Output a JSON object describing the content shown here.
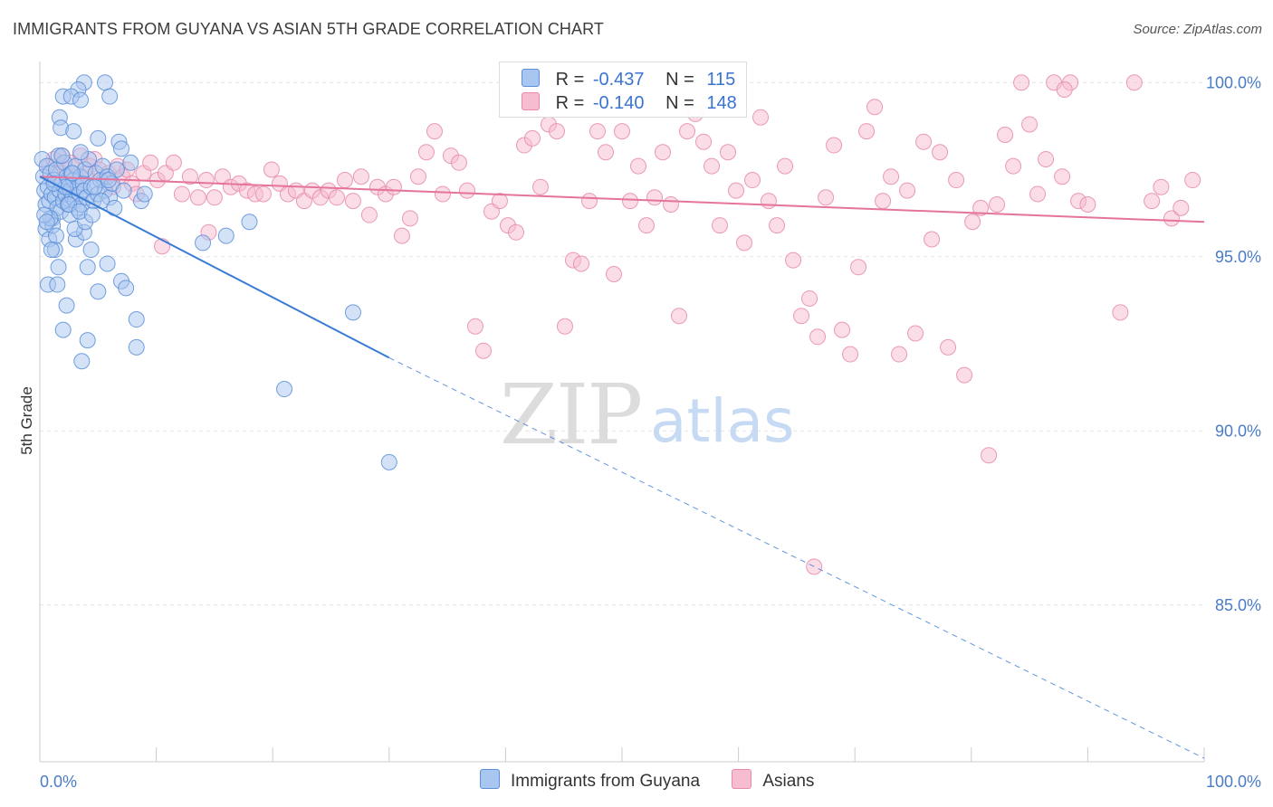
{
  "title": "IMMIGRANTS FROM GUYANA VS ASIAN 5TH GRADE CORRELATION CHART",
  "source": "Source: ZipAtlas.com",
  "watermark": {
    "zip": "ZIP",
    "atlas": "atlas"
  },
  "legend": {
    "rows": [
      {
        "r_label": "R =",
        "r_value": "-0.437",
        "n_label": "N =",
        "n_value": "115"
      },
      {
        "r_label": "R =",
        "r_value": "-0.140",
        "n_label": "N =",
        "n_value": "148"
      }
    ]
  },
  "bottom_legend": [
    "Immigrants from Guyana",
    "Asians"
  ],
  "colors": {
    "guyana_fill": "#a9c6f0",
    "guyana_stroke": "#5b8fd8",
    "guyana_line": "#3a7bd5",
    "asian_fill": "#f6bccf",
    "asian_stroke": "#e889a9",
    "asian_line": "#e5749c",
    "tick_text": "#4a7cc6",
    "grid": "#e3e3e3"
  },
  "chart_data": {
    "type": "scatter",
    "title": "IMMIGRANTS FROM GUYANA VS ASIAN 5TH GRADE CORRELATION CHART",
    "xlabel": "",
    "ylabel": "5th Grade",
    "xlim": [
      0,
      100
    ],
    "ylim": [
      80.5,
      100.5
    ],
    "x_tick_labels": [
      "0.0%",
      "100.0%"
    ],
    "y_ticks": [
      85,
      90,
      95,
      100
    ],
    "y_tick_labels": [
      "85.0%",
      "90.0%",
      "95.0%",
      "100.0%"
    ],
    "grid": true,
    "legend_position": "top-center",
    "series": [
      {
        "name": "Immigrants from Guyana",
        "r": -0.437,
        "n": 115,
        "trend": {
          "x": [
            0,
            30
          ],
          "y": [
            97.3,
            92.1
          ]
        },
        "trend_dashed": {
          "x": [
            30,
            100
          ],
          "y": [
            92.1,
            80.6
          ]
        },
        "points": [
          [
            0.2,
            97.8
          ],
          [
            0.3,
            97.3
          ],
          [
            0.4,
            96.9
          ],
          [
            0.5,
            96.5
          ],
          [
            0.6,
            97.6
          ],
          [
            0.7,
            97.0
          ],
          [
            0.8,
            96.6
          ],
          [
            0.9,
            97.4
          ],
          [
            1.0,
            96.8
          ],
          [
            1.1,
            96.1
          ],
          [
            1.2,
            97.2
          ],
          [
            1.3,
            96.7
          ],
          [
            1.4,
            97.5
          ],
          [
            1.5,
            96.4
          ],
          [
            1.6,
            97.9
          ],
          [
            1.7,
            96.9
          ],
          [
            1.8,
            96.3
          ],
          [
            1.9,
            97.1
          ],
          [
            2.0,
            96.6
          ],
          [
            2.1,
            97.7
          ],
          [
            2.2,
            96.8
          ],
          [
            2.3,
            97.3
          ],
          [
            2.4,
            96.5
          ],
          [
            2.5,
            97.0
          ],
          [
            2.6,
            96.9
          ],
          [
            2.7,
            97.4
          ],
          [
            2.8,
            96.7
          ],
          [
            2.9,
            97.2
          ],
          [
            3.0,
            96.6
          ],
          [
            3.1,
            97.6
          ],
          [
            3.2,
            96.4
          ],
          [
            3.3,
            97.0
          ],
          [
            3.4,
            96.8
          ],
          [
            3.5,
            97.3
          ],
          [
            3.6,
            96.5
          ],
          [
            3.7,
            97.1
          ],
          [
            3.8,
            96.9
          ],
          [
            3.9,
            97.5
          ],
          [
            4.0,
            96.7
          ],
          [
            4.2,
            97.8
          ],
          [
            4.4,
            97.0
          ],
          [
            4.6,
            96.6
          ],
          [
            4.8,
            97.4
          ],
          [
            5.0,
            96.8
          ],
          [
            5.2,
            97.2
          ],
          [
            5.4,
            97.6
          ],
          [
            5.6,
            96.9
          ],
          [
            5.8,
            97.3
          ],
          [
            6.0,
            96.7
          ],
          [
            0.5,
            95.8
          ],
          [
            0.8,
            95.5
          ],
          [
            1.1,
            95.9
          ],
          [
            1.3,
            95.2
          ],
          [
            1.6,
            94.7
          ],
          [
            0.7,
            94.2
          ],
          [
            1.5,
            94.2
          ],
          [
            2.3,
            93.6
          ],
          [
            2.0,
            92.9
          ],
          [
            3.1,
            95.5
          ],
          [
            3.8,
            95.7
          ],
          [
            4.4,
            95.2
          ],
          [
            4.1,
            94.7
          ],
          [
            5.0,
            94.0
          ],
          [
            5.8,
            94.8
          ],
          [
            7.0,
            94.3
          ],
          [
            7.4,
            94.1
          ],
          [
            8.3,
            93.2
          ],
          [
            8.3,
            92.4
          ],
          [
            4.1,
            92.6
          ],
          [
            3.6,
            92.0
          ],
          [
            3.8,
            100.0
          ],
          [
            5.6,
            100.0
          ],
          [
            3.3,
            99.8
          ],
          [
            2.0,
            99.6
          ],
          [
            2.7,
            99.6
          ],
          [
            3.5,
            99.5
          ],
          [
            6.0,
            99.6
          ],
          [
            1.7,
            99.0
          ],
          [
            1.8,
            98.7
          ],
          [
            2.9,
            98.6
          ],
          [
            5.0,
            98.4
          ],
          [
            6.8,
            98.3
          ],
          [
            7.0,
            98.1
          ],
          [
            3.5,
            98.0
          ],
          [
            7.8,
            97.7
          ],
          [
            8.7,
            96.6
          ],
          [
            9.0,
            96.8
          ],
          [
            14.0,
            95.4
          ],
          [
            16.0,
            95.6
          ],
          [
            18.0,
            96.0
          ],
          [
            26.9,
            93.4
          ],
          [
            21.0,
            91.2
          ],
          [
            30.0,
            89.1
          ],
          [
            0.9,
            96.1
          ],
          [
            1.4,
            95.6
          ],
          [
            1.9,
            97.9
          ],
          [
            2.6,
            96.2
          ],
          [
            3.0,
            95.8
          ],
          [
            3.9,
            96.0
          ],
          [
            4.7,
            97.0
          ],
          [
            5.3,
            96.6
          ],
          [
            6.2,
            97.1
          ],
          [
            6.6,
            97.5
          ],
          [
            7.2,
            96.9
          ],
          [
            2.2,
            97.0
          ],
          [
            0.4,
            96.2
          ],
          [
            1.0,
            95.2
          ],
          [
            2.5,
            96.5
          ],
          [
            3.4,
            96.3
          ],
          [
            5.9,
            97.2
          ],
          [
            6.4,
            96.4
          ],
          [
            0.6,
            96.0
          ],
          [
            1.2,
            97.1
          ],
          [
            2.8,
            97.4
          ],
          [
            4.5,
            96.2
          ]
        ]
      },
      {
        "name": "Asians",
        "r": -0.14,
        "n": 148,
        "trend": {
          "x": [
            0,
            100
          ],
          "y": [
            97.3,
            96.0
          ]
        },
        "points": [
          [
            0.8,
            97.6
          ],
          [
            1.2,
            97.8
          ],
          [
            1.5,
            97.4
          ],
          [
            1.9,
            97.9
          ],
          [
            2.3,
            97.5
          ],
          [
            2.7,
            97.7
          ],
          [
            3.1,
            97.3
          ],
          [
            3.5,
            97.9
          ],
          [
            3.9,
            97.4
          ],
          [
            4.3,
            97.6
          ],
          [
            4.7,
            97.8
          ],
          [
            5.1,
            97.5
          ],
          [
            5.5,
            97.2
          ],
          [
            5.9,
            97.4
          ],
          [
            6.3,
            97.0
          ],
          [
            6.7,
            97.6
          ],
          [
            7.1,
            97.3
          ],
          [
            7.5,
            97.5
          ],
          [
            7.9,
            97.1
          ],
          [
            8.3,
            96.8
          ],
          [
            8.9,
            97.4
          ],
          [
            9.5,
            97.7
          ],
          [
            10.1,
            97.2
          ],
          [
            10.8,
            97.4
          ],
          [
            11.5,
            97.7
          ],
          [
            12.2,
            96.8
          ],
          [
            12.9,
            97.3
          ],
          [
            13.6,
            96.7
          ],
          [
            14.3,
            97.2
          ],
          [
            15.0,
            96.7
          ],
          [
            15.7,
            97.3
          ],
          [
            16.4,
            97.0
          ],
          [
            17.1,
            97.1
          ],
          [
            17.8,
            96.9
          ],
          [
            18.5,
            96.8
          ],
          [
            19.2,
            96.8
          ],
          [
            19.9,
            97.5
          ],
          [
            20.6,
            97.1
          ],
          [
            21.3,
            96.8
          ],
          [
            22.0,
            96.9
          ],
          [
            22.7,
            96.6
          ],
          [
            23.4,
            96.9
          ],
          [
            24.1,
            96.7
          ],
          [
            24.8,
            96.9
          ],
          [
            25.5,
            96.7
          ],
          [
            26.2,
            97.2
          ],
          [
            26.9,
            96.6
          ],
          [
            27.6,
            97.3
          ],
          [
            28.3,
            96.2
          ],
          [
            29.0,
            97.0
          ],
          [
            29.7,
            96.8
          ],
          [
            30.4,
            97.0
          ],
          [
            31.1,
            95.6
          ],
          [
            31.8,
            96.1
          ],
          [
            32.5,
            97.3
          ],
          [
            33.2,
            98.0
          ],
          [
            33.9,
            98.6
          ],
          [
            34.6,
            96.8
          ],
          [
            35.3,
            97.9
          ],
          [
            36.0,
            97.7
          ],
          [
            36.7,
            96.9
          ],
          [
            37.4,
            93.0
          ],
          [
            38.1,
            92.3
          ],
          [
            38.8,
            96.3
          ],
          [
            39.5,
            96.6
          ],
          [
            40.2,
            95.9
          ],
          [
            40.9,
            95.7
          ],
          [
            41.6,
            98.2
          ],
          [
            42.3,
            98.4
          ],
          [
            43.0,
            97.0
          ],
          [
            43.7,
            98.8
          ],
          [
            44.4,
            98.6
          ],
          [
            45.1,
            93.0
          ],
          [
            45.8,
            94.9
          ],
          [
            46.5,
            94.8
          ],
          [
            47.2,
            96.6
          ],
          [
            47.9,
            98.6
          ],
          [
            48.6,
            98.0
          ],
          [
            49.3,
            94.5
          ],
          [
            50.0,
            98.6
          ],
          [
            50.7,
            96.6
          ],
          [
            51.4,
            97.6
          ],
          [
            52.1,
            95.9
          ],
          [
            52.8,
            96.7
          ],
          [
            53.5,
            98.0
          ],
          [
            54.2,
            96.5
          ],
          [
            54.9,
            93.3
          ],
          [
            55.6,
            98.6
          ],
          [
            56.3,
            99.1
          ],
          [
            57.0,
            98.3
          ],
          [
            57.7,
            97.6
          ],
          [
            58.4,
            95.9
          ],
          [
            59.1,
            98.0
          ],
          [
            59.8,
            96.9
          ],
          [
            60.5,
            95.4
          ],
          [
            61.2,
            97.2
          ],
          [
            61.9,
            99.0
          ],
          [
            62.6,
            96.6
          ],
          [
            63.3,
            95.9
          ],
          [
            64.0,
            97.6
          ],
          [
            64.7,
            94.9
          ],
          [
            65.4,
            93.3
          ],
          [
            66.1,
            93.8
          ],
          [
            66.8,
            92.7
          ],
          [
            67.5,
            96.7
          ],
          [
            68.2,
            98.2
          ],
          [
            68.9,
            92.9
          ],
          [
            69.6,
            92.2
          ],
          [
            70.3,
            94.7
          ],
          [
            71.0,
            98.6
          ],
          [
            71.7,
            99.3
          ],
          [
            72.4,
            96.6
          ],
          [
            73.1,
            97.3
          ],
          [
            73.8,
            92.2
          ],
          [
            74.5,
            96.9
          ],
          [
            75.2,
            92.8
          ],
          [
            75.9,
            98.3
          ],
          [
            76.6,
            95.5
          ],
          [
            77.3,
            98.0
          ],
          [
            78.0,
            92.4
          ],
          [
            78.7,
            97.2
          ],
          [
            79.4,
            91.6
          ],
          [
            80.1,
            96.0
          ],
          [
            80.8,
            96.4
          ],
          [
            81.5,
            89.3
          ],
          [
            82.2,
            96.5
          ],
          [
            82.9,
            98.5
          ],
          [
            83.6,
            97.6
          ],
          [
            84.3,
            100.0
          ],
          [
            85.0,
            98.8
          ],
          [
            85.7,
            96.8
          ],
          [
            86.4,
            97.8
          ],
          [
            87.1,
            100.0
          ],
          [
            87.8,
            97.3
          ],
          [
            88.5,
            100.0
          ],
          [
            89.2,
            96.6
          ],
          [
            90.0,
            96.5
          ],
          [
            92.8,
            93.4
          ],
          [
            94.0,
            100.0
          ],
          [
            95.5,
            96.6
          ],
          [
            96.3,
            97.0
          ],
          [
            97.2,
            96.1
          ],
          [
            98.0,
            96.4
          ],
          [
            99.0,
            97.2
          ],
          [
            10.5,
            95.3
          ],
          [
            14.5,
            95.7
          ],
          [
            66.5,
            86.1
          ],
          [
            88.0,
            99.8
          ]
        ]
      }
    ]
  }
}
